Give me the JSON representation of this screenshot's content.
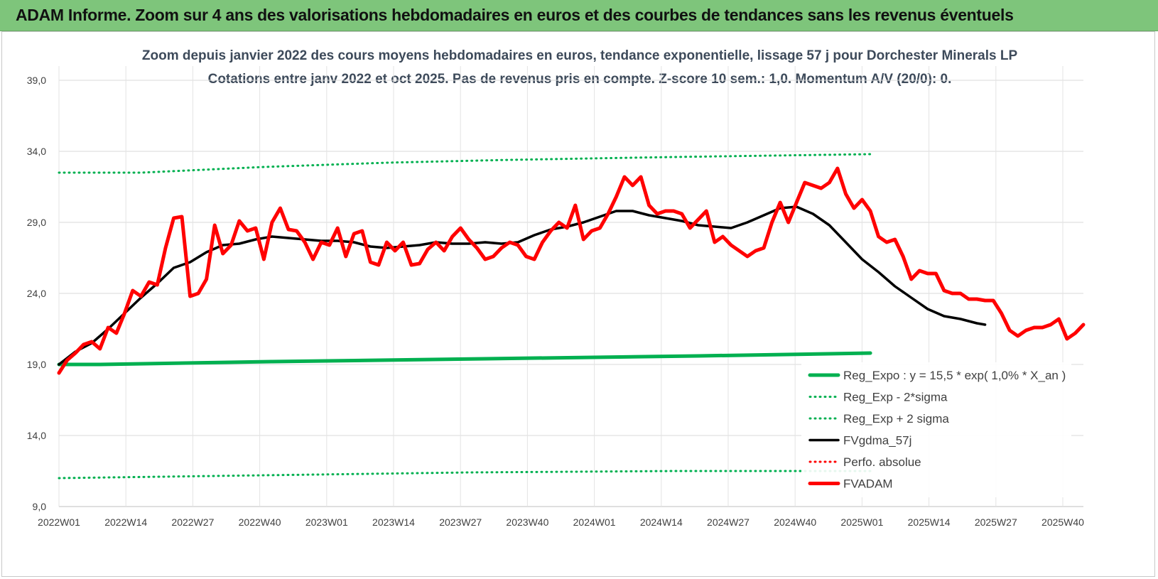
{
  "header": {
    "title": "ADAM Informe. Zoom sur 4 ans des valorisations hebdomadaires en euros et des courbes de tendances sans les revenus éventuels",
    "bg_color": "#7ec57b"
  },
  "chart_data": {
    "type": "line",
    "title": "Zoom depuis janvier 2022 des cours moyens hebdomadaires en euros, tendance exponentielle, lissage 57 j pour Dorchester Minerals LP",
    "subtitle": "Cotations entre janv 2022 et oct 2025. Pas de revenus pris en compte. Z-score 10 sem.: 1,0. Momentum A/V (20/0): 0.",
    "xlabel": "",
    "ylabel": "",
    "ylim": [
      9,
      39
    ],
    "yticks": [
      "9,0",
      "14,0",
      "19,0",
      "24,0",
      "29,0",
      "34,0",
      "39,0"
    ],
    "x_tick_labels": [
      "2022W01",
      "2022W14",
      "2022W27",
      "2022W40",
      "2023W01",
      "2023W14",
      "2023W27",
      "2023W40",
      "2024W01",
      "2024W14",
      "2024W27",
      "2024W40",
      "2025W01",
      "2025W14",
      "2025W27",
      "2025W40"
    ],
    "grid": true,
    "legend_position": "bottom-right",
    "series": [
      {
        "name": "Reg_Expo : y = 15,5 * exp( 1,0% * X_an )",
        "color": "#00b050",
        "style": "solid",
        "width": 5,
        "values": [
          [
            0,
            19.0
          ],
          [
            10,
            19.0
          ],
          [
            52,
            19.2
          ],
          [
            104,
            19.4
          ],
          [
            156,
            19.6
          ],
          [
            198,
            19.8
          ]
        ]
      },
      {
        "name": "Reg_Exp - 2*sigma",
        "color": "#00b050",
        "style": "dotted",
        "width": 3,
        "values": [
          [
            0,
            11.0
          ],
          [
            50,
            11.2
          ],
          [
            100,
            11.4
          ],
          [
            150,
            11.5
          ],
          [
            198,
            11.5
          ]
        ]
      },
      {
        "name": "Reg_Exp + 2 sigma",
        "color": "#00b050",
        "style": "dotted",
        "width": 3,
        "values": [
          [
            0,
            32.5
          ],
          [
            20,
            32.5
          ],
          [
            50,
            32.9
          ],
          [
            80,
            33.2
          ],
          [
            110,
            33.4
          ],
          [
            150,
            33.6
          ],
          [
            198,
            33.8
          ]
        ]
      },
      {
        "name": "FVgdma_57j",
        "color": "#000000",
        "style": "solid",
        "width": 3.5,
        "values": [
          [
            0,
            19.0
          ],
          [
            4,
            19.9
          ],
          [
            8,
            20.5
          ],
          [
            12,
            21.5
          ],
          [
            16,
            22.6
          ],
          [
            20,
            23.7
          ],
          [
            24,
            24.7
          ],
          [
            28,
            25.8
          ],
          [
            32,
            26.2
          ],
          [
            36,
            26.9
          ],
          [
            40,
            27.4
          ],
          [
            44,
            27.5
          ],
          [
            48,
            27.8
          ],
          [
            52,
            28.0
          ],
          [
            56,
            27.9
          ],
          [
            60,
            27.8
          ],
          [
            64,
            27.7
          ],
          [
            68,
            27.7
          ],
          [
            72,
            27.6
          ],
          [
            76,
            27.3
          ],
          [
            80,
            27.2
          ],
          [
            84,
            27.3
          ],
          [
            88,
            27.4
          ],
          [
            92,
            27.6
          ],
          [
            96,
            27.5
          ],
          [
            100,
            27.5
          ],
          [
            104,
            27.6
          ],
          [
            108,
            27.5
          ],
          [
            112,
            27.6
          ],
          [
            116,
            28.1
          ],
          [
            120,
            28.5
          ],
          [
            124,
            28.7
          ],
          [
            128,
            29.0
          ],
          [
            132,
            29.4
          ],
          [
            136,
            29.8
          ],
          [
            140,
            29.8
          ],
          [
            144,
            29.5
          ],
          [
            148,
            29.3
          ],
          [
            152,
            29.1
          ],
          [
            156,
            28.8
          ],
          [
            160,
            28.7
          ],
          [
            164,
            28.6
          ],
          [
            168,
            29.0
          ],
          [
            172,
            29.5
          ],
          [
            176,
            30.0
          ],
          [
            180,
            30.1
          ],
          [
            184,
            29.6
          ],
          [
            188,
            28.8
          ],
          [
            192,
            27.6
          ],
          [
            196,
            26.4
          ],
          [
            200,
            25.5
          ],
          [
            204,
            24.5
          ],
          [
            208,
            23.7
          ],
          [
            212,
            22.9
          ],
          [
            216,
            22.4
          ],
          [
            220,
            22.2
          ],
          [
            224,
            21.9
          ],
          [
            226,
            21.8
          ]
        ]
      },
      {
        "name": "Perfo. absolue",
        "color": "#ff0000",
        "style": "dotted",
        "width": 3,
        "values": []
      },
      {
        "name": "FVADAM",
        "color": "#ff0000",
        "style": "solid",
        "width": 5,
        "values": [
          [
            0,
            18.4
          ],
          [
            2,
            19.3
          ],
          [
            4,
            19.8
          ],
          [
            6,
            20.4
          ],
          [
            8,
            20.6
          ],
          [
            10,
            20.1
          ],
          [
            12,
            21.6
          ],
          [
            14,
            21.2
          ],
          [
            16,
            22.6
          ],
          [
            18,
            24.2
          ],
          [
            20,
            23.8
          ],
          [
            22,
            24.8
          ],
          [
            24,
            24.6
          ],
          [
            26,
            27.2
          ],
          [
            28,
            29.3
          ],
          [
            30,
            29.4
          ],
          [
            32,
            23.8
          ],
          [
            34,
            24.0
          ],
          [
            36,
            25.0
          ],
          [
            38,
            28.8
          ],
          [
            40,
            26.8
          ],
          [
            42,
            27.4
          ],
          [
            44,
            29.1
          ],
          [
            46,
            28.4
          ],
          [
            48,
            28.6
          ],
          [
            50,
            26.4
          ],
          [
            52,
            29.0
          ],
          [
            54,
            30.0
          ],
          [
            56,
            28.5
          ],
          [
            58,
            28.4
          ],
          [
            60,
            27.6
          ],
          [
            62,
            26.4
          ],
          [
            64,
            27.6
          ],
          [
            66,
            27.4
          ],
          [
            68,
            28.6
          ],
          [
            70,
            26.6
          ],
          [
            72,
            28.2
          ],
          [
            74,
            28.4
          ],
          [
            76,
            26.2
          ],
          [
            78,
            26.0
          ],
          [
            80,
            27.6
          ],
          [
            82,
            27.0
          ],
          [
            84,
            27.6
          ],
          [
            86,
            26.0
          ],
          [
            88,
            26.1
          ],
          [
            90,
            27.1
          ],
          [
            92,
            27.6
          ],
          [
            94,
            27.0
          ],
          [
            96,
            28.0
          ],
          [
            98,
            28.6
          ],
          [
            100,
            27.8
          ],
          [
            102,
            27.2
          ],
          [
            104,
            26.4
          ],
          [
            106,
            26.6
          ],
          [
            108,
            27.2
          ],
          [
            110,
            27.6
          ],
          [
            112,
            27.4
          ],
          [
            114,
            26.6
          ],
          [
            116,
            26.4
          ],
          [
            118,
            27.6
          ],
          [
            120,
            28.4
          ],
          [
            122,
            29.0
          ],
          [
            124,
            28.6
          ],
          [
            126,
            30.2
          ],
          [
            128,
            27.8
          ],
          [
            130,
            28.4
          ],
          [
            132,
            28.6
          ],
          [
            134,
            29.6
          ],
          [
            136,
            30.8
          ],
          [
            138,
            32.2
          ],
          [
            140,
            31.6
          ],
          [
            142,
            32.2
          ],
          [
            144,
            30.2
          ],
          [
            146,
            29.6
          ],
          [
            148,
            29.8
          ],
          [
            150,
            29.8
          ],
          [
            152,
            29.6
          ],
          [
            154,
            28.6
          ],
          [
            156,
            29.2
          ],
          [
            158,
            29.8
          ],
          [
            160,
            27.6
          ],
          [
            162,
            28.0
          ],
          [
            164,
            27.4
          ],
          [
            166,
            27.0
          ],
          [
            168,
            26.6
          ],
          [
            170,
            27.0
          ],
          [
            172,
            27.2
          ],
          [
            174,
            29.0
          ],
          [
            176,
            30.4
          ],
          [
            178,
            29.0
          ],
          [
            180,
            30.4
          ],
          [
            182,
            31.8
          ],
          [
            184,
            31.6
          ],
          [
            186,
            31.4
          ],
          [
            188,
            31.8
          ],
          [
            190,
            32.8
          ],
          [
            192,
            31.0
          ],
          [
            194,
            30.0
          ],
          [
            196,
            30.6
          ],
          [
            198,
            29.8
          ],
          [
            200,
            28.0
          ],
          [
            202,
            27.6
          ],
          [
            204,
            27.8
          ],
          [
            206,
            26.6
          ],
          [
            208,
            25.0
          ],
          [
            210,
            25.6
          ],
          [
            212,
            25.4
          ],
          [
            214,
            25.4
          ],
          [
            216,
            24.2
          ],
          [
            218,
            24.0
          ],
          [
            220,
            24.0
          ],
          [
            222,
            23.6
          ],
          [
            224,
            23.6
          ],
          [
            226,
            23.5
          ],
          [
            228,
            23.5
          ],
          [
            230,
            22.6
          ],
          [
            232,
            21.4
          ],
          [
            234,
            21.0
          ],
          [
            236,
            21.4
          ],
          [
            238,
            21.6
          ],
          [
            240,
            21.6
          ],
          [
            242,
            21.8
          ],
          [
            244,
            22.2
          ],
          [
            246,
            20.8
          ],
          [
            248,
            21.2
          ],
          [
            250,
            21.8
          ]
        ]
      }
    ]
  }
}
